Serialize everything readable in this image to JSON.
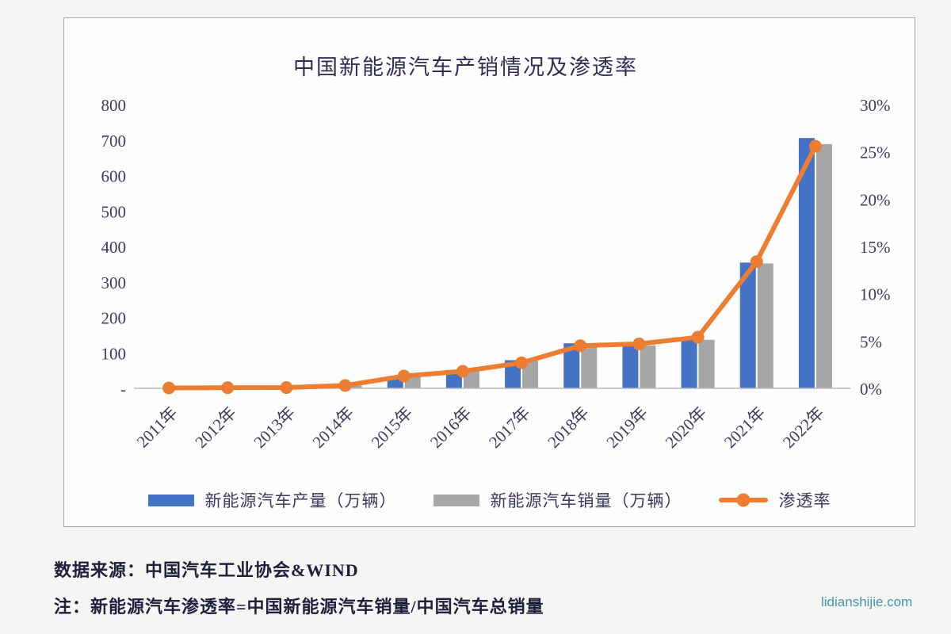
{
  "page": {
    "source_label": "数据来源：中国汽车工业协会&WIND",
    "note": "注：新能源汽车渗透率=中国新能源汽车销量/中国汽车总销量",
    "watermark": "lidianshijie.com"
  },
  "colors": {
    "production_bar": "#4472C4",
    "sales_bar": "#A6A6A6",
    "penetration_line": "#ED7D31",
    "axis_text": "#3b3b60",
    "axis_line": "#b8b8bc"
  },
  "chart_data": {
    "type": "bar",
    "subtype": "combo-bar-line",
    "title": "中国新能源汽车产销情况及渗透率",
    "categories": [
      "2011年",
      "2012年",
      "2013年",
      "2014年",
      "2015年",
      "2016年",
      "2017年",
      "2018年",
      "2019年",
      "2020年",
      "2021年",
      "2022年"
    ],
    "series": [
      {
        "name": "新能源汽车产量（万辆）",
        "type": "bar",
        "axis": "left",
        "color": "#4472C4",
        "values": [
          0.8,
          1.3,
          1.8,
          7.8,
          34.0,
          51.7,
          79.4,
          127.0,
          124.2,
          136.6,
          354.5,
          705.8
        ]
      },
      {
        "name": "新能源汽车销量（万辆）",
        "type": "bar",
        "axis": "left",
        "color": "#A6A6A6",
        "values": [
          0.8,
          1.3,
          1.8,
          7.5,
          33.1,
          50.7,
          77.7,
          125.6,
          120.6,
          136.7,
          352.1,
          688.7
        ]
      },
      {
        "name": "渗透率",
        "type": "line",
        "axis": "right",
        "color": "#ED7D31",
        "values": [
          0.04,
          0.07,
          0.08,
          0.3,
          1.3,
          1.8,
          2.7,
          4.5,
          4.7,
          5.4,
          13.4,
          25.6
        ]
      }
    ],
    "left_axis": {
      "max": 800,
      "min": 0,
      "ticks": [
        "800",
        "700",
        "600",
        "500",
        "400",
        "300",
        "200",
        "100",
        "-"
      ]
    },
    "right_axis": {
      "max": 30,
      "min": 0,
      "ticks": [
        "30%",
        "25%",
        "20%",
        "15%",
        "10%",
        "5%",
        "0%"
      ]
    },
    "grid": "off",
    "legend_position": "bottom"
  }
}
